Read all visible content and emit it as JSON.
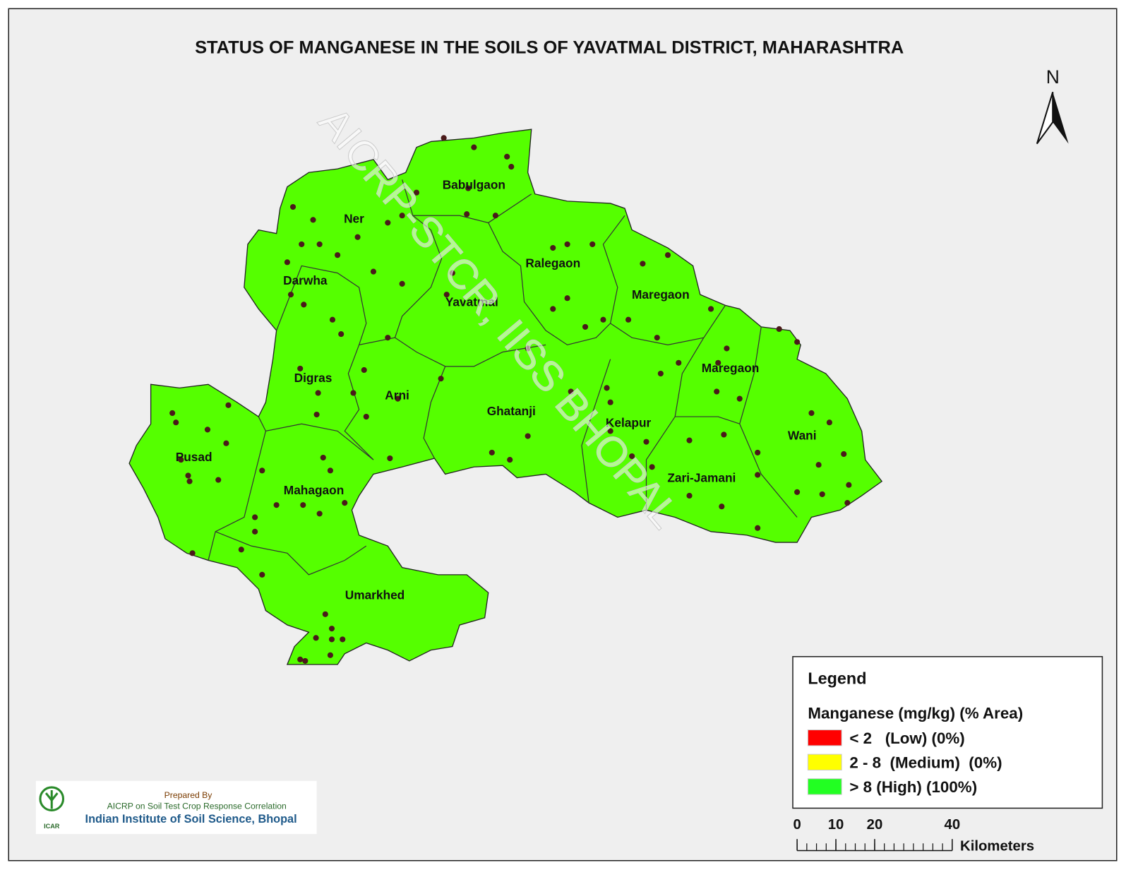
{
  "title": "STATUS OF MANGANESE IN THE SOILS OF YAVATMAL DISTRICT, MAHARASHTRA",
  "north": "N",
  "watermark": "AICRP-STCR, IISS BHOPAL",
  "districts": [
    {
      "label": "Babulgaon"
    },
    {
      "label": "Ner"
    },
    {
      "label": "Darwha"
    },
    {
      "label": "Ralegaon"
    },
    {
      "label": "Yavatmal"
    },
    {
      "label": "Maregaon"
    },
    {
      "label": "Digras"
    },
    {
      "label": "Arni"
    },
    {
      "label": "Ghatanji"
    },
    {
      "label": "Maregaon"
    },
    {
      "label": "Kelapur"
    },
    {
      "label": "Wani"
    },
    {
      "label": "Pusad"
    },
    {
      "label": "Mahagaon"
    },
    {
      "label": "Zari-Jamani"
    },
    {
      "label": "Umarkhed"
    }
  ],
  "legend": {
    "title": "Legend",
    "subtitle": "Manganese (mg/kg) (% Area)",
    "items": [
      {
        "label": "< 2   (Low) (0%)",
        "color": "#ff0000"
      },
      {
        "label": "2 - 8  (Medium)  (0%)",
        "color": "#ffff00"
      },
      {
        "label": "> 8 (High) (100%)",
        "color": "#22ff22"
      }
    ]
  },
  "scale_bar": {
    "ticks": [
      0,
      10,
      20,
      40
    ],
    "unit": "Kilometers"
  },
  "credit": {
    "prepared_by": "Prepared By",
    "program": "AICRP on Soil Test Crop Response Correlation",
    "institute": "Indian Institute of Soil Science, Bhopal",
    "logo_text": "ICAR"
  }
}
